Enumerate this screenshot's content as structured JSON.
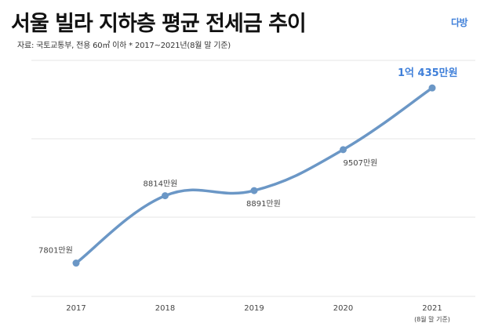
{
  "title": "서울 빌라 지하층 평균 전세금 추이",
  "source": "자료: 국토교통부, 전용 60㎡ 이하   * 2017~2021년(8월 말 기준)",
  "logo": "다방",
  "colors": {
    "line": "#6b97c6",
    "highlight_label": "#3f7fd9",
    "label": "#444444",
    "grid": "#e6e6e6"
  },
  "chart_data": {
    "type": "line",
    "categories": [
      "2017",
      "2018",
      "2019",
      "2020",
      "2021"
    ],
    "category_sublabels": [
      "",
      "",
      "",
      "",
      "(8월 말 기준)"
    ],
    "values": [
      7801,
      8814,
      8891,
      9507,
      10435
    ],
    "data_labels": [
      "7801만원",
      "8814만원",
      "8891만원",
      "9507만원",
      "1억 435만원"
    ],
    "ylim": [
      7300,
      10850
    ],
    "grid": true,
    "line_style": "smooth"
  }
}
